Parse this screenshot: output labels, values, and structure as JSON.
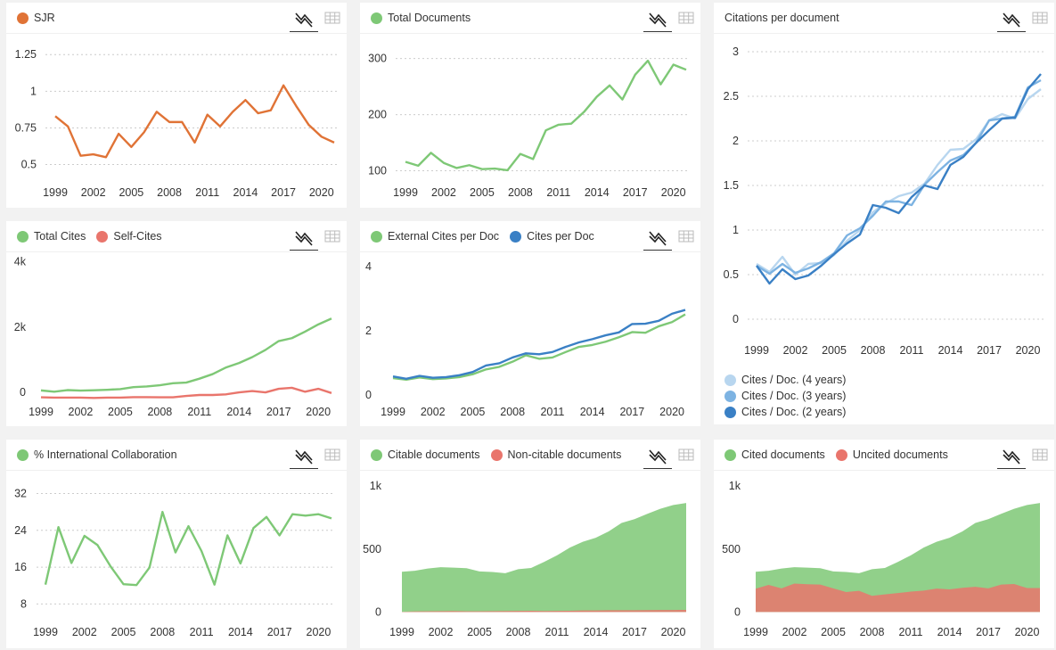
{
  "years_labels": [
    "1999",
    "2002",
    "2005",
    "2008",
    "2011",
    "2014",
    "2017",
    "2020"
  ],
  "colors": {
    "green": "#7ec876",
    "red": "#e9756c",
    "orange": "#e07336",
    "blue1": "#b8d6ef",
    "blue2": "#7db3e2",
    "blue3": "#3a80c5",
    "axis_text": "#333333",
    "grid": "#cccccc"
  },
  "icons": {
    "line": "line-chart-icon",
    "table": "table-icon"
  },
  "chart_data": [
    {
      "id": "sjr",
      "type": "line",
      "title": "SJR",
      "x": [
        1999,
        2000,
        2001,
        2002,
        2003,
        2004,
        2005,
        2006,
        2007,
        2008,
        2009,
        2010,
        2011,
        2012,
        2013,
        2014,
        2015,
        2016,
        2017,
        2018,
        2019,
        2020,
        2021
      ],
      "ylim": [
        0.4,
        1.3
      ],
      "yticks": [
        0.5,
        0.75,
        1,
        1.25
      ],
      "ytick_labels": [
        "0.5",
        "0.75",
        "1",
        "1.25"
      ],
      "series": [
        {
          "name": "SJR",
          "color": "#e07336",
          "values": [
            0.83,
            0.76,
            0.56,
            0.57,
            0.55,
            0.71,
            0.62,
            0.72,
            0.86,
            0.79,
            0.79,
            0.65,
            0.84,
            0.76,
            0.86,
            0.94,
            0.85,
            0.87,
            1.04,
            0.9,
            0.77,
            0.69,
            0.65
          ]
        }
      ]
    },
    {
      "id": "total-documents",
      "type": "line",
      "title": "Total Documents",
      "x": [
        1999,
        2000,
        2001,
        2002,
        2003,
        2004,
        2005,
        2006,
        2007,
        2008,
        2009,
        2010,
        2011,
        2012,
        2013,
        2014,
        2015,
        2016,
        2017,
        2018,
        2019,
        2020,
        2021
      ],
      "ylim": [
        85,
        320
      ],
      "yticks": [
        100,
        200,
        300
      ],
      "ytick_labels": [
        "100",
        "200",
        "300"
      ],
      "series": [
        {
          "name": "Total Documents",
          "color": "#7ec876",
          "values": [
            116,
            109,
            132,
            114,
            105,
            110,
            103,
            104,
            101,
            130,
            121,
            172,
            182,
            184,
            205,
            232,
            252,
            227,
            271,
            296,
            254,
            289,
            280
          ]
        }
      ]
    },
    {
      "id": "citations-per-document",
      "type": "line",
      "title": "Citations per document",
      "x": [
        1999,
        2000,
        2001,
        2002,
        2003,
        2004,
        2005,
        2006,
        2007,
        2008,
        2009,
        2010,
        2011,
        2012,
        2013,
        2014,
        2015,
        2016,
        2017,
        2018,
        2019,
        2020,
        2021
      ],
      "ylim": [
        -0.15,
        3.1
      ],
      "yticks": [
        0,
        0.5,
        1,
        1.5,
        2,
        2.5,
        3
      ],
      "ytick_labels": [
        "0",
        "0.5",
        "1",
        "1.5",
        "2",
        "2.5",
        "3"
      ],
      "series": [
        {
          "name": "Cites / Doc. (4 years)",
          "color": "#b8d6ef",
          "values": [
            0.62,
            0.53,
            0.7,
            0.5,
            0.62,
            0.63,
            0.72,
            0.88,
            1.0,
            1.2,
            1.3,
            1.38,
            1.42,
            1.52,
            1.73,
            1.9,
            1.91,
            2.02,
            2.23,
            2.3,
            2.25,
            2.47,
            2.58
          ]
        },
        {
          "name": "Cites / Doc. (3 years)",
          "color": "#7db3e2",
          "values": [
            0.6,
            0.51,
            0.62,
            0.52,
            0.57,
            0.64,
            0.74,
            0.94,
            1.02,
            1.16,
            1.32,
            1.32,
            1.28,
            1.51,
            1.65,
            1.78,
            1.84,
            1.98,
            2.23,
            2.25,
            2.27,
            2.6,
            2.68
          ]
        },
        {
          "name": "Cites / Doc. (2 years)",
          "color": "#3a80c5",
          "values": [
            0.6,
            0.4,
            0.56,
            0.45,
            0.49,
            0.6,
            0.73,
            0.85,
            0.95,
            1.28,
            1.25,
            1.19,
            1.37,
            1.5,
            1.46,
            1.73,
            1.82,
            1.98,
            2.12,
            2.25,
            2.26,
            2.58,
            2.75
          ]
        }
      ]
    },
    {
      "id": "total-cites",
      "type": "line",
      "title": "",
      "x": [
        1999,
        2000,
        2001,
        2002,
        2003,
        2004,
        2005,
        2006,
        2007,
        2008,
        2009,
        2010,
        2011,
        2012,
        2013,
        2014,
        2015,
        2016,
        2017,
        2018,
        2019,
        2020,
        2021
      ],
      "ylim": [
        -380,
        4150
      ],
      "yticks": [
        0,
        2000,
        4000
      ],
      "ytick_labels": [
        "0",
        "2k",
        "4k"
      ],
      "series": [
        {
          "name": "Total Cites",
          "color": "#7ec876",
          "values": [
            60,
            20,
            70,
            55,
            65,
            80,
            100,
            160,
            180,
            220,
            280,
            300,
            420,
            560,
            760,
            900,
            1080,
            1300,
            1570,
            1660,
            1860,
            2080,
            2260
          ]
        },
        {
          "name": "Self-Cites",
          "color": "#e9756c",
          "values": [
            -150,
            -160,
            -160,
            -160,
            -170,
            -160,
            -160,
            -145,
            -145,
            -150,
            -150,
            -110,
            -80,
            -80,
            -60,
            0,
            40,
            0,
            110,
            140,
            20,
            110,
            -20
          ]
        }
      ]
    },
    {
      "id": "external-cites-per-doc",
      "type": "line",
      "title": "",
      "x": [
        1999,
        2000,
        2001,
        2002,
        2003,
        2004,
        2005,
        2006,
        2007,
        2008,
        2009,
        2010,
        2011,
        2012,
        2013,
        2014,
        2015,
        2016,
        2017,
        2018,
        2019,
        2020,
        2021
      ],
      "ylim": [
        -0.3,
        4.3
      ],
      "yticks": [
        0,
        2,
        4
      ],
      "ytick_labels": [
        "0",
        "2",
        "4"
      ],
      "series": [
        {
          "name": "External Cites per Doc",
          "color": "#7ec876",
          "values": [
            0.53,
            0.48,
            0.55,
            0.5,
            0.52,
            0.56,
            0.65,
            0.8,
            0.88,
            1.04,
            1.24,
            1.13,
            1.17,
            1.34,
            1.5,
            1.56,
            1.66,
            1.8,
            1.96,
            1.94,
            2.14,
            2.27,
            2.51
          ]
        },
        {
          "name": "Cites per Doc",
          "color": "#3a80c5",
          "values": [
            0.58,
            0.51,
            0.6,
            0.54,
            0.56,
            0.62,
            0.72,
            0.92,
            0.99,
            1.17,
            1.3,
            1.27,
            1.34,
            1.5,
            1.64,
            1.74,
            1.86,
            1.95,
            2.21,
            2.22,
            2.31,
            2.53,
            2.65
          ]
        }
      ]
    },
    {
      "id": "international-collaboration",
      "type": "line",
      "title": "% International Collaboration",
      "x": [
        1999,
        2000,
        2001,
        2002,
        2003,
        2004,
        2005,
        2006,
        2007,
        2008,
        2009,
        2010,
        2011,
        2012,
        2013,
        2014,
        2015,
        2016,
        2017,
        2018,
        2019,
        2020,
        2021
      ],
      "ylim": [
        4,
        35
      ],
      "yticks": [
        8,
        16,
        24,
        32
      ],
      "ytick_labels": [
        "8",
        "16",
        "24",
        "32"
      ],
      "series": [
        {
          "name": "% International Collaboration",
          "color": "#7ec876",
          "values": [
            12.2,
            24.7,
            16.9,
            22.8,
            20.8,
            16.2,
            12.3,
            12.1,
            15.9,
            28.0,
            19.2,
            24.9,
            19.5,
            12.2,
            22.9,
            16.8,
            24.5,
            26.9,
            22.9,
            27.5,
            27.2,
            27.5,
            26.6
          ]
        }
      ]
    },
    {
      "id": "citable-documents",
      "type": "area",
      "title": "",
      "x": [
        1999,
        2000,
        2001,
        2002,
        2003,
        2004,
        2005,
        2006,
        2007,
        2008,
        2009,
        2010,
        2011,
        2012,
        2013,
        2014,
        2015,
        2016,
        2017,
        2018,
        2019,
        2020,
        2021
      ],
      "ylim": [
        -40,
        1030
      ],
      "yticks": [
        0,
        500,
        1000
      ],
      "ytick_labels": [
        "0",
        "500",
        "1k"
      ],
      "series": [
        {
          "name": "Non-citable documents",
          "color": "#e9756c",
          "values": [
            2,
            5,
            6,
            7,
            8,
            6,
            6,
            7,
            8,
            9,
            10,
            8,
            9,
            10,
            12,
            12,
            14,
            14,
            14,
            15,
            16,
            16,
            17
          ]
        },
        {
          "name": "Citable documents",
          "color": "#7ec876",
          "values": [
            320,
            328,
            345,
            356,
            352,
            348,
            322,
            318,
            308,
            340,
            350,
            398,
            450,
            512,
            558,
            590,
            640,
            708,
            738,
            780,
            820,
            850,
            866
          ]
        }
      ]
    },
    {
      "id": "cited-documents",
      "type": "area",
      "title": "",
      "x": [
        1999,
        2000,
        2001,
        2002,
        2003,
        2004,
        2005,
        2006,
        2007,
        2008,
        2009,
        2010,
        2011,
        2012,
        2013,
        2014,
        2015,
        2016,
        2017,
        2018,
        2019,
        2020,
        2021
      ],
      "ylim": [
        -40,
        1030
      ],
      "yticks": [
        0,
        500,
        1000
      ],
      "ytick_labels": [
        "0",
        "500",
        "1k"
      ],
      "series": [
        {
          "name": "Uncited documents",
          "color": "#e9756c",
          "values": [
            185,
            215,
            188,
            226,
            220,
            218,
            188,
            158,
            168,
            128,
            140,
            150,
            162,
            170,
            186,
            180,
            192,
            200,
            188,
            218,
            222,
            190,
            190
          ]
        },
        {
          "name": "Cited documents",
          "color": "#7ec876",
          "values": [
            320,
            328,
            345,
            356,
            352,
            348,
            322,
            318,
            308,
            340,
            350,
            398,
            450,
            512,
            558,
            590,
            640,
            708,
            738,
            780,
            820,
            850,
            866
          ]
        }
      ]
    }
  ]
}
